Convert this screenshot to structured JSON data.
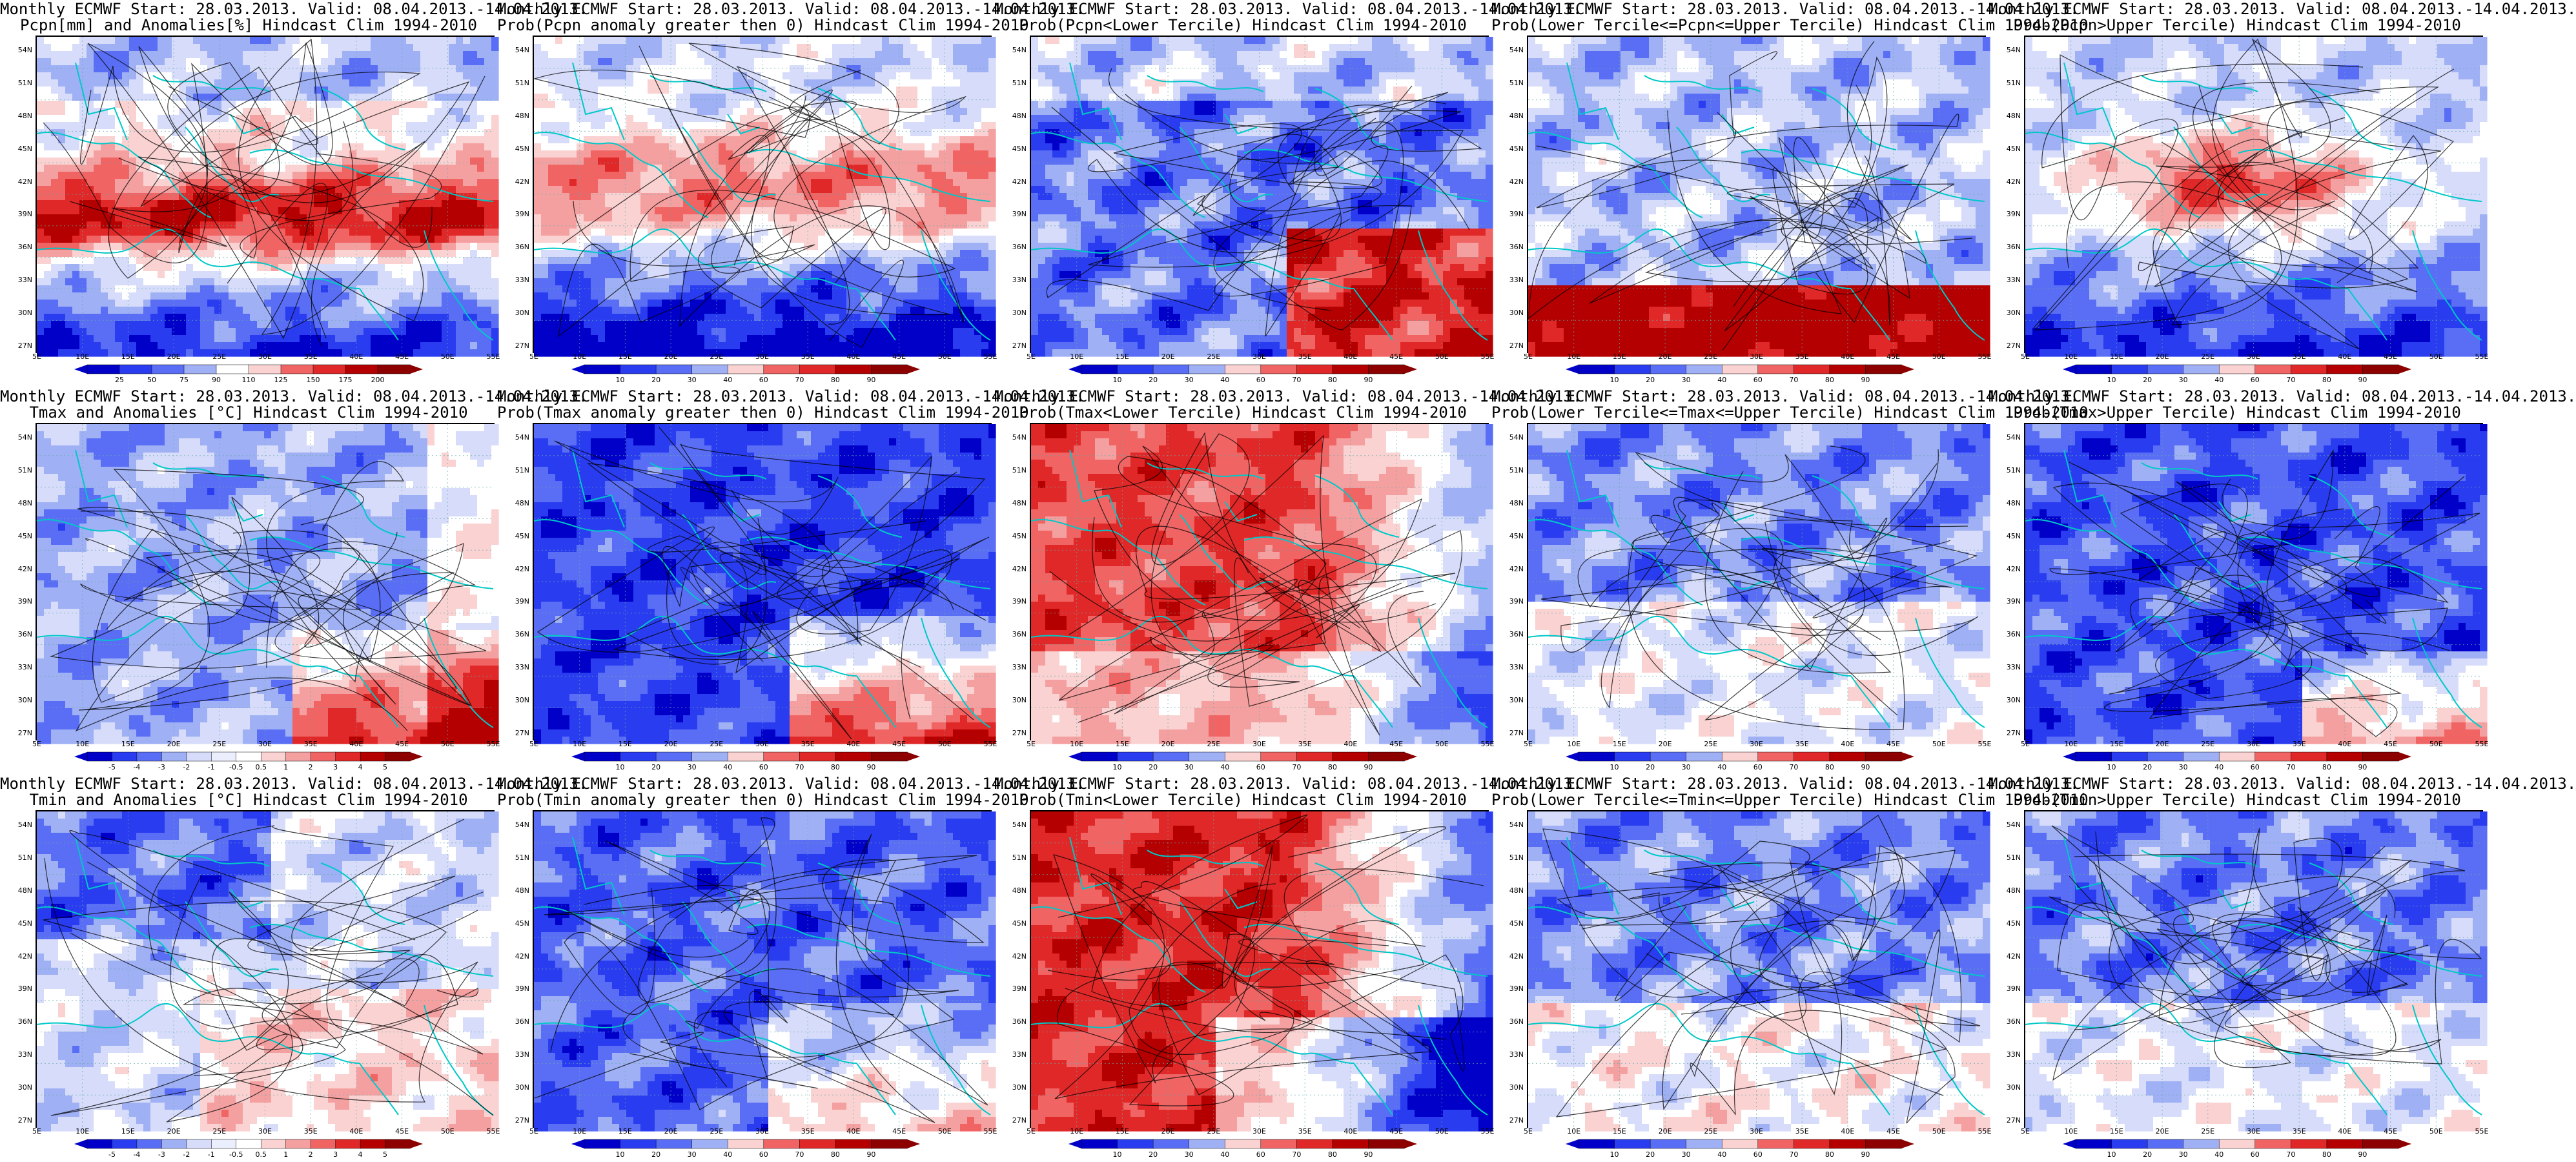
{
  "panels": [
    {
      "id": "p11",
      "title1": "Monthly ECMWF Start: 28.03.2013. Valid: 08.04.2013.-14.04.2013.",
      "title2": "Pcpn[mm] and Anomalies[%] Hindcast Clim 1994-2010",
      "scheme": "anom-pcp",
      "cbar_labels": [
        "25",
        "50",
        "75",
        "90",
        "110",
        "125",
        "150",
        "175",
        "200"
      ]
    },
    {
      "id": "p12",
      "title1": "Monthly ECMWF Start: 28.03.2013. Valid: 08.04.2013.-14.04.2013.",
      "title2": "Prob(Pcpn anomaly greater then 0) Hindcast Clim 1994-2010",
      "scheme": "prob-pos",
      "cbar_labels": [
        "10",
        "20",
        "30",
        "40",
        "60",
        "70",
        "80",
        "90"
      ]
    },
    {
      "id": "p13",
      "title1": "Monthly ECMWF Start: 28.03.2013. Valid: 08.04.2013.-14.04.2013.",
      "title2": "Prob(Pcpn<Lower Tercile) Hindcast Clim 1994-2010",
      "scheme": "prob-low",
      "cbar_labels": [
        "10",
        "20",
        "30",
        "40",
        "60",
        "70",
        "80",
        "90"
      ]
    },
    {
      "id": "p14",
      "title1": "Monthly ECMWF Start: 28.03.2013. Valid: 08.04.2013.-14.04.2013.",
      "title2": "Prob(Lower Tercile<=Pcpn<=Upper Tercile) Hindcast Clim 1994-2010",
      "scheme": "prob-mid",
      "cbar_labels": [
        "10",
        "20",
        "30",
        "40",
        "60",
        "70",
        "80",
        "90"
      ]
    },
    {
      "id": "p15",
      "title1": "Monthly ECMWF Start: 28.03.2013. Valid: 08.04.2013.-14.04.2013.",
      "title2": "Prob(Pcpn>Upper Tercile) Hindcast Clim 1994-2010",
      "scheme": "prob-up",
      "cbar_labels": [
        "10",
        "20",
        "30",
        "40",
        "60",
        "70",
        "80",
        "90"
      ]
    },
    {
      "id": "p21",
      "title1": "Monthly ECMWF Start: 28.03.2013. Valid: 08.04.2013.-14.04.2013.",
      "title2": "Tmax and Anomalies [°C] Hindcast Clim 1994-2010",
      "scheme": "tanom",
      "cbar_labels": [
        "-5",
        "-4",
        "-3",
        "-2",
        "-1",
        "-0.5",
        "0.5",
        "1",
        "2",
        "3",
        "4",
        "5"
      ]
    },
    {
      "id": "p22",
      "title1": "Monthly ECMWF Start: 28.03.2013. Valid: 08.04.2013.-14.04.2013.",
      "title2": "Prob(Tmax anomaly greater then 0) Hindcast Clim 1994-2010",
      "scheme": "tprob-pos",
      "cbar_labels": [
        "10",
        "20",
        "30",
        "40",
        "60",
        "70",
        "80",
        "90"
      ]
    },
    {
      "id": "p23",
      "title1": "Monthly ECMWF Start: 28.03.2013. Valid: 08.04.2013.-14.04.2013.",
      "title2": "Prob(Tmax<Lower Tercile) Hindcast Clim 1994-2010",
      "scheme": "tprob-low",
      "cbar_labels": [
        "10",
        "20",
        "30",
        "40",
        "60",
        "70",
        "80",
        "90"
      ]
    },
    {
      "id": "p24",
      "title1": "Monthly ECMWF Start: 28.03.2013. Valid: 08.04.2013.-14.04.2013.",
      "title2": "Prob(Lower Tercile<=Tmax<=Upper Tercile) Hindcast Clim 1994-2010",
      "scheme": "tprob-mid",
      "cbar_labels": [
        "10",
        "20",
        "30",
        "40",
        "60",
        "70",
        "80",
        "90"
      ]
    },
    {
      "id": "p25",
      "title1": "Monthly ECMWF Start: 28.03.2013. Valid: 08.04.2013.-14.04.2013.",
      "title2": "Prob(Tmax>Upper Tercile) Hindcast Clim 1994-2010",
      "scheme": "tprob-up",
      "cbar_labels": [
        "10",
        "20",
        "30",
        "40",
        "60",
        "70",
        "80",
        "90"
      ]
    },
    {
      "id": "p31",
      "title1": "Monthly ECMWF Start: 28.03.2013. Valid: 08.04.2013.-14.04.2013.",
      "title2": "Tmin and Anomalies [°C] Hindcast Clim 1994-2010",
      "scheme": "tminanom",
      "cbar_labels": [
        "-5",
        "-4",
        "-3",
        "-2",
        "-1",
        "-0.5",
        "0.5",
        "1",
        "2",
        "3",
        "4",
        "5"
      ]
    },
    {
      "id": "p32",
      "title1": "Monthly ECMWF Start: 28.03.2013. Valid: 08.04.2013.-14.04.2013.",
      "title2": "Prob(Tmin anomaly greater then 0) Hindcast Clim 1994-2010",
      "scheme": "tminprob-pos",
      "cbar_labels": [
        "10",
        "20",
        "30",
        "40",
        "60",
        "70",
        "80",
        "90"
      ]
    },
    {
      "id": "p33",
      "title1": "Monthly ECMWF Start: 28.03.2013. Valid: 08.04.2013.-14.04.2013.",
      "title2": "Prob(Tmin<Lower Tercile) Hindcast Clim 1994-2010",
      "scheme": "tminprob-low",
      "cbar_labels": [
        "10",
        "20",
        "30",
        "40",
        "60",
        "70",
        "80",
        "90"
      ]
    },
    {
      "id": "p34",
      "title1": "Monthly ECMWF Start: 28.03.2013. Valid: 08.04.2013.-14.04.2013.",
      "title2": "Prob(Lower Tercile<=Tmin<=Upper Tercile) Hindcast Clim 1994-2010",
      "scheme": "tminprob-mid",
      "cbar_labels": [
        "10",
        "20",
        "30",
        "40",
        "60",
        "70",
        "80",
        "90"
      ]
    },
    {
      "id": "p35",
      "title1": "Monthly ECMWF Start: 28.03.2013. Valid: 08.04.2013.-14.04.2013.",
      "title2": "Prob(Tmin>Upper Tercile) Hindcast Clim 1994-2010",
      "scheme": "tminprob-up",
      "cbar_labels": [
        "10",
        "20",
        "30",
        "40",
        "60",
        "70",
        "80",
        "90"
      ]
    }
  ],
  "lat_labels": [
    "54N",
    "51N",
    "48N",
    "45N",
    "42N",
    "39N",
    "36N",
    "33N",
    "30N",
    "27N"
  ],
  "lon_labels": [
    "5E",
    "10E",
    "15E",
    "20E",
    "25E",
    "30E",
    "35E",
    "40E",
    "45E",
    "50E",
    "55E"
  ],
  "colors": {
    "deep_blue": "#0000c8",
    "blue": "#2a3cf0",
    "mid_blue": "#5a6ef5",
    "light_blue": "#9fb0f5",
    "pale_blue": "#d6dcfa",
    "white": "#ffffff",
    "pale_red": "#fad2d2",
    "light_red": "#f5a0a0",
    "mid_red": "#f06464",
    "red": "#e02828",
    "deep_red": "#b40000",
    "coast": "#00c8c8",
    "contour": "#000000"
  }
}
